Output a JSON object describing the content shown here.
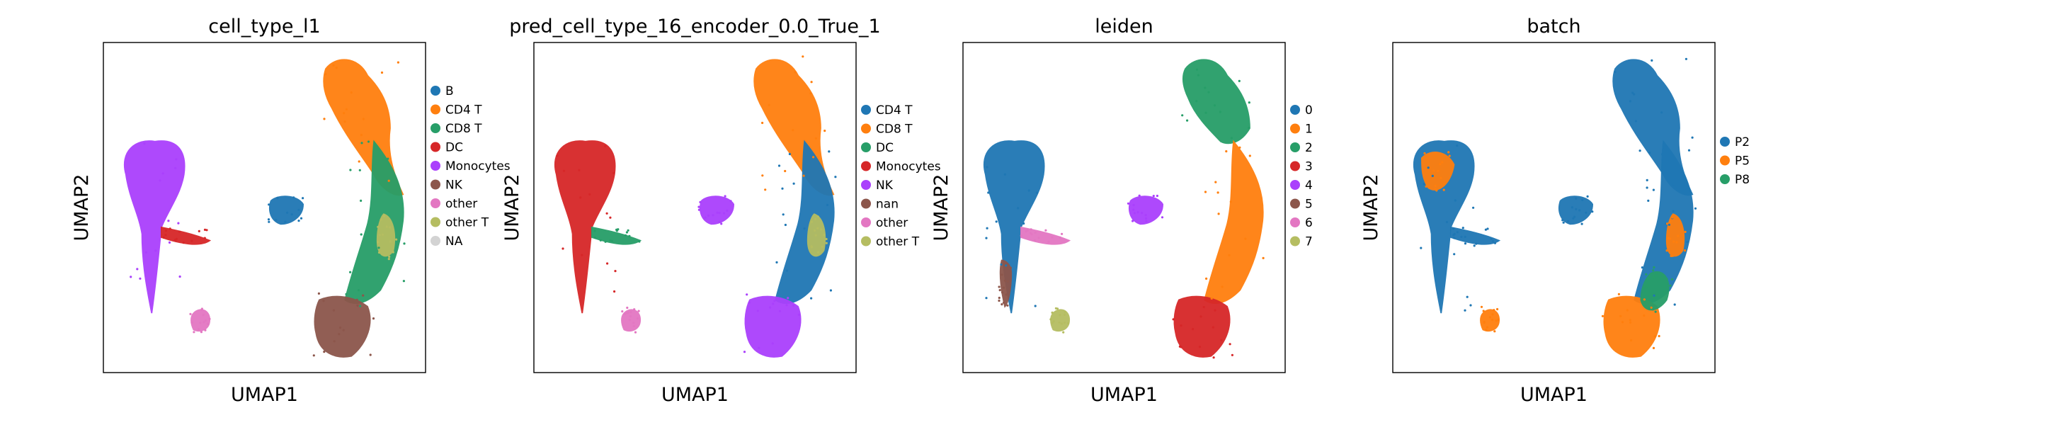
{
  "chart_data": [
    {
      "type": "scatter",
      "title": "cell_type_l1",
      "xlabel": "UMAP1",
      "ylabel": "UMAP2",
      "grid": false,
      "legend_position": "right",
      "legend": [
        {
          "label": "B",
          "color": "#1f77b4"
        },
        {
          "label": "CD4 T",
          "color": "#ff7f0e"
        },
        {
          "label": "CD8 T",
          "color": "#279e68"
        },
        {
          "label": "DC",
          "color": "#d62728"
        },
        {
          "label": "Monocytes",
          "color": "#aa40fc"
        },
        {
          "label": "NK",
          "color": "#8c564b"
        },
        {
          "label": "other",
          "color": "#e377c2"
        },
        {
          "label": "other T",
          "color": "#b5bd61"
        },
        {
          "label": "NA",
          "color": "#d3d3d3"
        }
      ],
      "clusters": [
        {
          "label": "Monocytes",
          "color": "#aa40fc",
          "shape": "mono_lobe"
        },
        {
          "label": "DC",
          "color": "#d62728",
          "shape": "stripe"
        },
        {
          "label": "B",
          "color": "#1f77b4",
          "shape": "small_island"
        },
        {
          "label": "other",
          "color": "#e377c2",
          "shape": "tiny_bottom"
        },
        {
          "label": "CD4 T",
          "color": "#ff7f0e",
          "shape": "right_arc_upper"
        },
        {
          "label": "CD8 T",
          "color": "#279e68",
          "shape": "right_arc_mid"
        },
        {
          "label": "other T",
          "color": "#b5bd61",
          "shape": "right_arc_patch"
        },
        {
          "label": "NK",
          "color": "#8c564b",
          "shape": "right_arc_bottom"
        }
      ]
    },
    {
      "type": "scatter",
      "title": "pred_cell_type_16_encoder_0.0_True_1",
      "xlabel": "UMAP1",
      "ylabel": "UMAP2",
      "grid": false,
      "legend_position": "right",
      "legend": [
        {
          "label": "CD4 T",
          "color": "#1f77b4"
        },
        {
          "label": "CD8 T",
          "color": "#ff7f0e"
        },
        {
          "label": "DC",
          "color": "#279e68"
        },
        {
          "label": "Monocytes",
          "color": "#d62728"
        },
        {
          "label": "NK",
          "color": "#aa40fc"
        },
        {
          "label": "nan",
          "color": "#8c564b"
        },
        {
          "label": "other",
          "color": "#e377c2"
        },
        {
          "label": "other T",
          "color": "#b5bd61"
        }
      ],
      "clusters": [
        {
          "label": "Monocytes",
          "color": "#d62728",
          "shape": "mono_lobe"
        },
        {
          "label": "DC",
          "color": "#279e68",
          "shape": "stripe"
        },
        {
          "label": "NK",
          "color": "#aa40fc",
          "shape": "small_island"
        },
        {
          "label": "other",
          "color": "#e377c2",
          "shape": "tiny_bottom"
        },
        {
          "label": "CD8 T",
          "color": "#ff7f0e",
          "shape": "right_arc_upper"
        },
        {
          "label": "CD4 T",
          "color": "#1f77b4",
          "shape": "right_arc_mid"
        },
        {
          "label": "other T",
          "color": "#b5bd61",
          "shape": "right_arc_patch"
        },
        {
          "label": "NK",
          "color": "#aa40fc",
          "shape": "right_arc_bottom"
        }
      ]
    },
    {
      "type": "scatter",
      "title": "leiden",
      "xlabel": "UMAP1",
      "ylabel": "UMAP2",
      "grid": false,
      "legend_position": "right",
      "legend": [
        {
          "label": "0",
          "color": "#1f77b4"
        },
        {
          "label": "1",
          "color": "#ff7f0e"
        },
        {
          "label": "2",
          "color": "#279e68"
        },
        {
          "label": "3",
          "color": "#d62728"
        },
        {
          "label": "4",
          "color": "#aa40fc"
        },
        {
          "label": "5",
          "color": "#8c564b"
        },
        {
          "label": "6",
          "color": "#e377c2"
        },
        {
          "label": "7",
          "color": "#b5bd61"
        }
      ],
      "clusters": [
        {
          "label": "0",
          "color": "#1f77b4",
          "shape": "mono_lobe"
        },
        {
          "label": "5",
          "color": "#8c564b",
          "shape": "mono_tail"
        },
        {
          "label": "6",
          "color": "#e377c2",
          "shape": "stripe"
        },
        {
          "label": "4",
          "color": "#aa40fc",
          "shape": "small_island"
        },
        {
          "label": "7",
          "color": "#b5bd61",
          "shape": "tiny_bottom"
        },
        {
          "label": "2",
          "color": "#279e68",
          "shape": "right_arc_top"
        },
        {
          "label": "1",
          "color": "#ff7f0e",
          "shape": "right_arc_mid"
        },
        {
          "label": "3",
          "color": "#d62728",
          "shape": "right_arc_bottom"
        }
      ]
    },
    {
      "type": "scatter",
      "title": "batch",
      "xlabel": "UMAP1",
      "ylabel": "UMAP2",
      "grid": false,
      "legend_position": "right",
      "legend": [
        {
          "label": "P2",
          "color": "#1f77b4"
        },
        {
          "label": "P5",
          "color": "#ff7f0e"
        },
        {
          "label": "P8",
          "color": "#279e68"
        }
      ],
      "clusters": [
        {
          "label": "P2",
          "color": "#1f77b4",
          "shape": "mono_lobe"
        },
        {
          "label": "P2",
          "color": "#1f77b4",
          "shape": "stripe"
        },
        {
          "label": "P2",
          "color": "#1f77b4",
          "shape": "small_island"
        },
        {
          "label": "P5",
          "color": "#ff7f0e",
          "shape": "tiny_bottom"
        },
        {
          "label": "P2",
          "color": "#1f77b4",
          "shape": "right_arc_upper"
        },
        {
          "label": "P2",
          "color": "#1f77b4",
          "shape": "right_arc_mid"
        },
        {
          "label": "P5",
          "color": "#ff7f0e",
          "shape": "right_arc_patch"
        },
        {
          "label": "P5",
          "color": "#ff7f0e",
          "shape": "right_arc_bottom"
        },
        {
          "label": "P5",
          "color": "#ff7f0e",
          "shape": "mono_speckle"
        },
        {
          "label": "P8",
          "color": "#279e68",
          "shape": "arc_speckle"
        }
      ]
    }
  ]
}
